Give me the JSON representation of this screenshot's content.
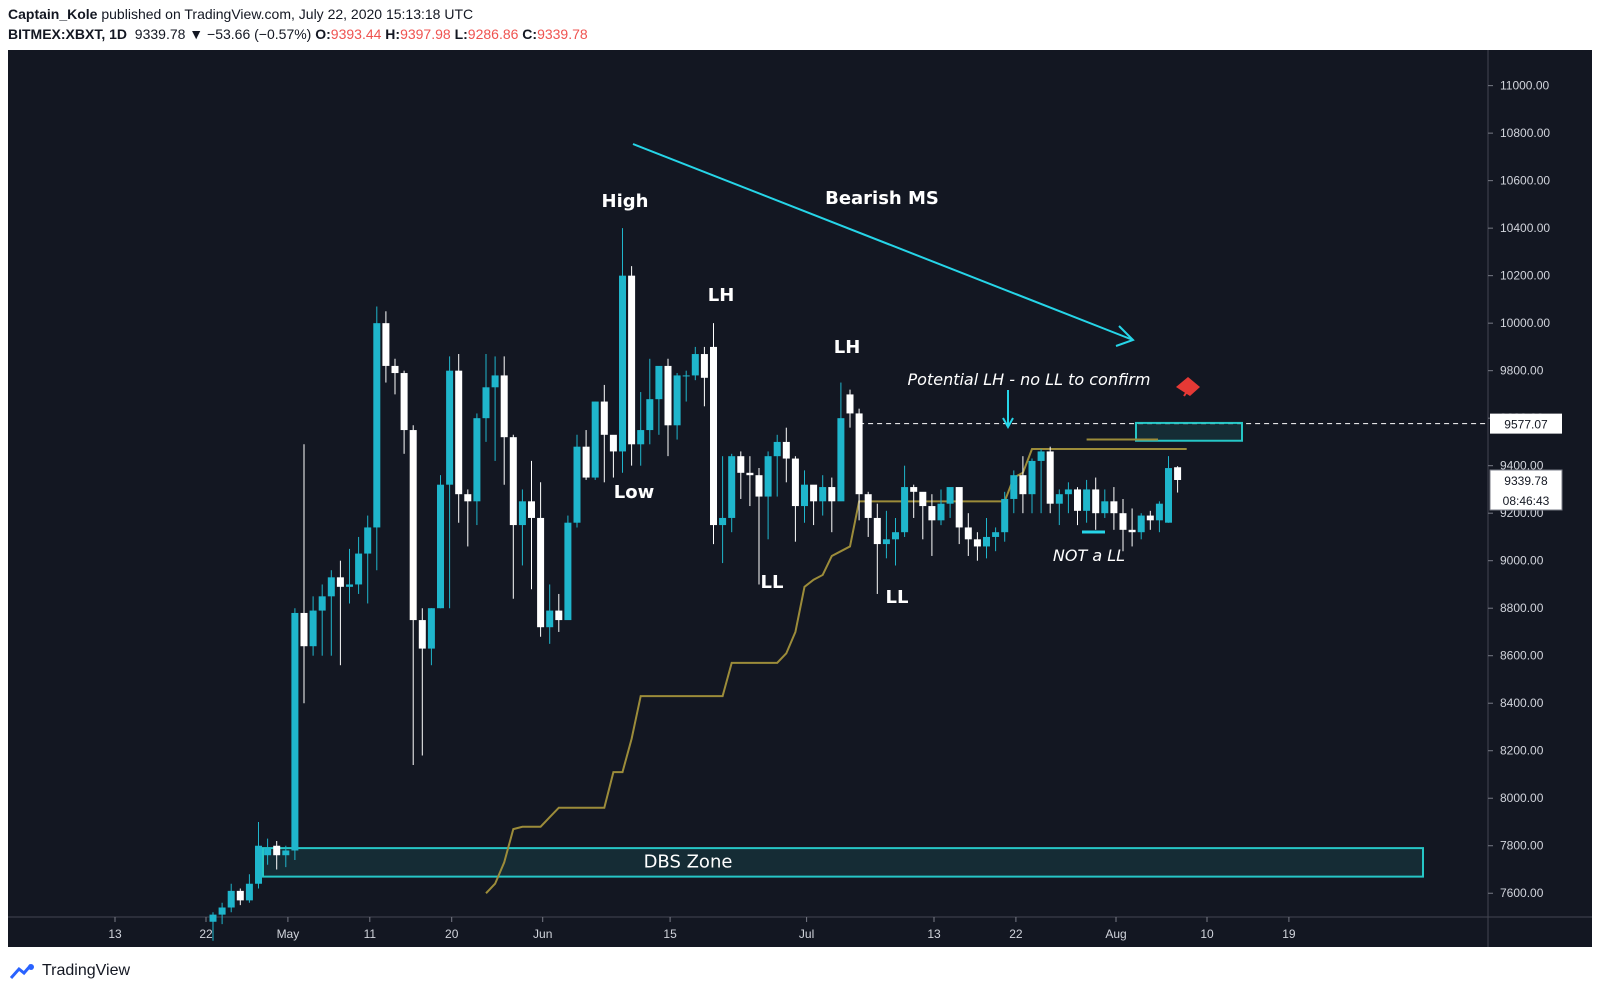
{
  "header": {
    "author": "Captain_Kole",
    "publish_line": " published on TradingView.com, July 22, 2020 15:13:18 UTC",
    "symbol": "BITMEX:XBXT, 1D",
    "last": "9339.78",
    "change": "▼ −53.66 (−0.57%)",
    "o_label": "O:",
    "o_val": "9393.44",
    "h_label": "H:",
    "h_val": "9397.98",
    "l_label": "L:",
    "l_val": "9286.86",
    "c_label": "C:",
    "c_val": "9339.78"
  },
  "footer": {
    "brand": "TradingView",
    "logo_icon": "tradingview-logo-icon"
  },
  "colors": {
    "background": "#131722",
    "bull": "#1fb6cc",
    "bear": "#ffffff",
    "trail": "#9c8c3a",
    "zone": "#26c6c6",
    "arrow": "#26d5e8",
    "axis_text": "#d1d4dc",
    "label_text": "#ffffff",
    "flag": "#e53935"
  },
  "chart_data": {
    "type": "candlestick",
    "title": "",
    "ylim": [
      7500,
      11150
    ],
    "y_ticks": [
      "11000.00",
      "10800.00",
      "10600.00",
      "10400.00",
      "10200.00",
      "10000.00",
      "9800.00",
      "9600.00",
      "9400.00",
      "9200.00",
      "9000.00",
      "8800.00",
      "8600.00",
      "8400.00",
      "8200.00",
      "8000.00",
      "7800.00",
      "7600.00"
    ],
    "x_ticks": [
      "13",
      "22",
      "May",
      "11",
      "20",
      "Jun",
      "15",
      "Jul",
      "13",
      "22",
      "Aug",
      "10",
      "19"
    ],
    "price_labels": {
      "level": "9577.07",
      "last": "9339.78",
      "countdown": "08:46:43"
    },
    "annotations": [
      "High",
      "Low",
      "LH",
      "LH",
      "LL",
      "LL",
      "Bearish MS",
      "Potential LH - no LL to confirm",
      "NOT a LL",
      "DBS Zone"
    ],
    "candles": [
      [
        7480,
        7510,
        7400,
        7520
      ],
      [
        7510,
        7540,
        7470,
        7560
      ],
      [
        7540,
        7610,
        7520,
        7640
      ],
      [
        7610,
        7570,
        7550,
        7620
      ],
      [
        7570,
        7640,
        7560,
        7680
      ],
      [
        7640,
        7800,
        7620,
        7900
      ],
      [
        7760,
        7790,
        7720,
        7830
      ],
      [
        7800,
        7760,
        7700,
        7820
      ],
      [
        7760,
        7780,
        7710,
        7800
      ],
      [
        7780,
        8780,
        7740,
        8800
      ],
      [
        8780,
        8640,
        8400,
        9490
      ],
      [
        8640,
        8790,
        8600,
        8850
      ],
      [
        8790,
        8850,
        8600,
        8900
      ],
      [
        8850,
        8930,
        8600,
        8960
      ],
      [
        8930,
        8890,
        8560,
        9000
      ],
      [
        8890,
        8900,
        8820,
        9050
      ],
      [
        8900,
        9030,
        8860,
        9100
      ],
      [
        9030,
        9140,
        8820,
        9190
      ],
      [
        9140,
        10000,
        8960,
        10070
      ],
      [
        10000,
        9820,
        9750,
        10050
      ],
      [
        9820,
        9790,
        9700,
        9850
      ],
      [
        9790,
        9550,
        9450,
        9800
      ],
      [
        9550,
        8750,
        8140,
        9570
      ],
      [
        8750,
        8630,
        8180,
        8800
      ],
      [
        8630,
        8800,
        8560,
        8800
      ],
      [
        8800,
        9320,
        8800,
        9360
      ],
      [
        9320,
        9800,
        8800,
        9860
      ],
      [
        9800,
        9280,
        9160,
        9870
      ],
      [
        9280,
        9250,
        9060,
        9300
      ],
      [
        9250,
        9600,
        9150,
        9620
      ],
      [
        9600,
        9730,
        9500,
        9870
      ],
      [
        9730,
        9780,
        9420,
        9860
      ],
      [
        9780,
        9520,
        9320,
        9860
      ],
      [
        9520,
        9150,
        8840,
        9530
      ],
      [
        9150,
        9250,
        8980,
        9300
      ],
      [
        9250,
        9180,
        8880,
        9420
      ],
      [
        9180,
        8720,
        8680,
        9330
      ],
      [
        8720,
        8790,
        8650,
        8900
      ],
      [
        8790,
        8750,
        8700,
        8860
      ],
      [
        8750,
        9160,
        8760,
        9190
      ],
      [
        9160,
        9480,
        9140,
        9530
      ],
      [
        9480,
        9350,
        9340,
        9550
      ],
      [
        9350,
        9670,
        9340,
        9670
      ],
      [
        9670,
        9530,
        9330,
        9740
      ],
      [
        9530,
        9460,
        9350,
        9520
      ],
      [
        9460,
        10200,
        9370,
        10400
      ],
      [
        10200,
        9490,
        9400,
        10240
      ],
      [
        9490,
        9550,
        9400,
        9710
      ],
      [
        9550,
        9680,
        9490,
        9850
      ],
      [
        9680,
        9820,
        9530,
        9800
      ],
      [
        9820,
        9570,
        9440,
        9850
      ],
      [
        9570,
        9780,
        9510,
        9790
      ],
      [
        9780,
        9780,
        9670,
        9800
      ],
      [
        9780,
        9870,
        9760,
        9900
      ],
      [
        9870,
        9770,
        9650,
        9900
      ],
      [
        9900,
        9150,
        9070,
        10000
      ],
      [
        9150,
        9180,
        8990,
        9440
      ],
      [
        9180,
        9440,
        9120,
        9450
      ],
      [
        9440,
        9370,
        9260,
        9460
      ],
      [
        9370,
        9360,
        9230,
        9440
      ],
      [
        9360,
        9270,
        8900,
        9390
      ],
      [
        9270,
        9440,
        9090,
        9460
      ],
      [
        9440,
        9500,
        9270,
        9530
      ],
      [
        9500,
        9430,
        9330,
        9560
      ],
      [
        9430,
        9230,
        9080,
        9440
      ],
      [
        9230,
        9320,
        9160,
        9380
      ],
      [
        9320,
        9250,
        9150,
        9310
      ],
      [
        9250,
        9310,
        9190,
        9360
      ],
      [
        9310,
        9250,
        9120,
        9350
      ],
      [
        9250,
        9600,
        9260,
        9750
      ],
      [
        9700,
        9620,
        9560,
        9720
      ],
      [
        9620,
        9280,
        9170,
        9640
      ],
      [
        9280,
        9180,
        9100,
        9290
      ],
      [
        9180,
        9070,
        8860,
        9240
      ],
      [
        9070,
        9090,
        9010,
        9210
      ],
      [
        9090,
        9120,
        8980,
        9180
      ],
      [
        9120,
        9310,
        9100,
        9400
      ],
      [
        9310,
        9290,
        9180,
        9320
      ],
      [
        9290,
        9230,
        9090,
        9280
      ],
      [
        9230,
        9170,
        9020,
        9280
      ],
      [
        9170,
        9240,
        9150,
        9300
      ],
      [
        9240,
        9310,
        9180,
        9300
      ],
      [
        9310,
        9140,
        9070,
        9280
      ],
      [
        9140,
        9090,
        9020,
        9200
      ],
      [
        9090,
        9060,
        9000,
        9120
      ],
      [
        9060,
        9100,
        9010,
        9180
      ],
      [
        9100,
        9120,
        9040,
        9140
      ],
      [
        9120,
        9260,
        9080,
        9290
      ],
      [
        9260,
        9360,
        9200,
        9380
      ],
      [
        9360,
        9280,
        9200,
        9440
      ],
      [
        9280,
        9420,
        9200,
        9430
      ],
      [
        9420,
        9460,
        9200,
        9470
      ],
      [
        9460,
        9240,
        9200,
        9480
      ],
      [
        9240,
        9280,
        9150,
        9300
      ],
      [
        9280,
        9300,
        9200,
        9330
      ],
      [
        9300,
        9210,
        9150,
        9310
      ],
      [
        9210,
        9300,
        9160,
        9340
      ],
      [
        9300,
        9200,
        9130,
        9350
      ],
      [
        9200,
        9250,
        9180,
        9300
      ],
      [
        9250,
        9200,
        9130,
        9310
      ],
      [
        9200,
        9130,
        9040,
        9260
      ],
      [
        9130,
        9120,
        9060,
        9220
      ],
      [
        9120,
        9190,
        9090,
        9200
      ],
      [
        9190,
        9170,
        9130,
        9210
      ],
      [
        9170,
        9240,
        9120,
        9250
      ],
      [
        9160,
        9390,
        9160,
        9440
      ],
      [
        9393.44,
        9339.78,
        9286.86,
        9397.98
      ]
    ],
    "trailing_line": [
      [
        0,
        7520
      ],
      [
        1,
        7520
      ],
      [
        2,
        7520
      ],
      [
        3,
        7520
      ],
      [
        4,
        7520
      ],
      [
        5,
        7520
      ],
      [
        6,
        7520
      ],
      [
        7,
        7520
      ],
      [
        8,
        7520
      ],
      [
        9,
        7520
      ],
      [
        10,
        7520
      ],
      [
        11,
        7520
      ],
      [
        12,
        7520
      ],
      [
        13,
        7520
      ],
      [
        14,
        7520
      ],
      [
        15,
        7520
      ],
      [
        16,
        7520
      ],
      [
        17,
        7520
      ],
      [
        18,
        7520
      ],
      [
        19,
        7520
      ],
      [
        20,
        7520
      ],
      [
        21,
        7520
      ],
      [
        22,
        7520
      ],
      [
        23,
        7520
      ],
      [
        24,
        7520
      ],
      [
        25,
        7520
      ],
      [
        26,
        7520
      ],
      [
        27,
        7520
      ],
      [
        28,
        7520
      ],
      [
        29,
        7520
      ],
      [
        30,
        7600
      ],
      [
        31,
        7640
      ],
      [
        32,
        7730
      ],
      [
        33,
        7870
      ],
      [
        34,
        7880
      ],
      [
        35,
        7880
      ],
      [
        36,
        7880
      ],
      [
        37,
        7920
      ],
      [
        38,
        7960
      ],
      [
        39,
        7960
      ],
      [
        40,
        7960
      ],
      [
        41,
        7960
      ],
      [
        42,
        7960
      ],
      [
        43,
        7960
      ],
      [
        44,
        8110
      ],
      [
        45,
        8110
      ],
      [
        46,
        8250
      ],
      [
        47,
        8430
      ],
      [
        48,
        8430
      ],
      [
        49,
        8430
      ],
      [
        50,
        8430
      ],
      [
        51,
        8430
      ],
      [
        52,
        8430
      ],
      [
        53,
        8430
      ],
      [
        54,
        8430
      ],
      [
        55,
        8430
      ],
      [
        56,
        8430
      ],
      [
        57,
        8570
      ],
      [
        58,
        8570
      ],
      [
        59,
        8570
      ],
      [
        60,
        8570
      ],
      [
        61,
        8570
      ],
      [
        62,
        8570
      ],
      [
        63,
        8610
      ],
      [
        64,
        8700
      ],
      [
        65,
        8890
      ],
      [
        66,
        8920
      ],
      [
        67,
        8940
      ],
      [
        68,
        9020
      ],
      [
        69,
        9040
      ],
      [
        70,
        9060
      ],
      [
        71,
        9250
      ],
      [
        72,
        9250
      ],
      [
        73,
        9250
      ],
      [
        74,
        9250
      ],
      [
        75,
        9250
      ],
      [
        76,
        9250
      ],
      [
        77,
        9250
      ],
      [
        78,
        9250
      ],
      [
        79,
        9250
      ],
      [
        80,
        9250
      ],
      [
        81,
        9250
      ],
      [
        82,
        9250
      ],
      [
        83,
        9250
      ],
      [
        84,
        9250
      ],
      [
        85,
        9250
      ],
      [
        86,
        9250
      ],
      [
        87,
        9250
      ],
      [
        88,
        9350
      ],
      [
        89,
        9370
      ],
      [
        90,
        9470
      ],
      [
        91,
        9470
      ],
      [
        92,
        9470
      ],
      [
        93,
        9470
      ],
      [
        94,
        9470
      ],
      [
        95,
        9470
      ],
      [
        96,
        9470
      ],
      [
        97,
        9470
      ],
      [
        98,
        9470
      ],
      [
        99,
        9470
      ],
      [
        100,
        9470
      ],
      [
        101,
        9470
      ],
      [
        102,
        9470
      ],
      [
        103,
        9470
      ],
      [
        104,
        9470
      ],
      [
        105,
        9470
      ],
      [
        106,
        9470
      ],
      [
        107,
        9470
      ]
    ],
    "zones": [
      {
        "label": "DBS Zone",
        "y_low": 7670,
        "y_high": 7790
      },
      {
        "label": "",
        "y_low": 9505,
        "y_high": 9580
      }
    ]
  }
}
